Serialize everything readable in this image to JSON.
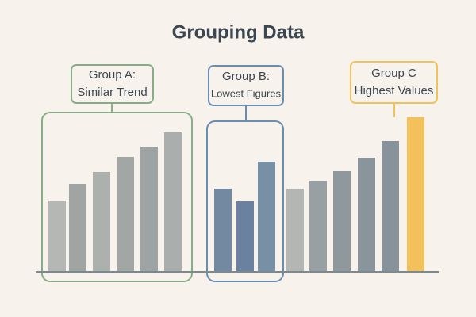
{
  "chart_data": {
    "type": "bar",
    "title": "Grouping Data",
    "values": [
      90,
      111,
      126,
      145,
      158,
      176,
      105,
      89,
      139,
      105,
      115,
      127,
      144,
      165,
      195
    ],
    "colors": [
      "#b4b7b4",
      "#a0a5a4",
      "#adb1ae",
      "#a2a7a6",
      "#9ea3a3",
      "#aaaeac",
      "#7389a2",
      "#6a82a0",
      "#7890a6",
      "#b3b6b3",
      "#98a0a4",
      "#8e989d",
      "#8a959b",
      "#87929a",
      "#f3c15c"
    ],
    "ylim": [
      0,
      200
    ],
    "groups": [
      {
        "title": "Group A:",
        "subtitle": "Similar Trend",
        "color": "#86ad88"
      },
      {
        "title": "Group B:",
        "subtitle": "Lowest Figures",
        "color": "#6a8db0"
      },
      {
        "title": "Group C",
        "subtitle": "Highest Values",
        "color": "#f0c35a"
      }
    ]
  }
}
